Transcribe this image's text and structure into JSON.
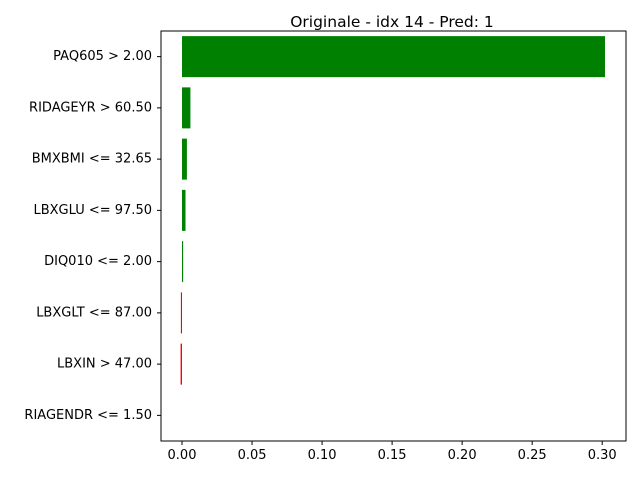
{
  "chart_data": {
    "type": "bar",
    "orientation": "horizontal",
    "title": "Originale - idx 14 - Pred: 1",
    "xlabel": "",
    "ylabel": "",
    "categories": [
      "PAQ605 > 2.00",
      "RIDAGEYR > 60.50",
      "BMXBMI <= 32.65",
      "LBXGLU <= 97.50",
      "DIQ010 <= 2.00",
      "LBXGLT <= 87.00",
      "LBXIN > 47.00",
      "RIAGENDR <= 1.50"
    ],
    "values": [
      0.302,
      0.006,
      0.0035,
      0.0025,
      0.0008,
      -0.0008,
      -0.001,
      0.0
    ],
    "xlim": [
      -0.015,
      0.317
    ],
    "xticks": [
      0.0,
      0.05,
      0.1,
      0.15,
      0.2,
      0.25,
      0.3
    ],
    "xtick_labels": [
      "0.00",
      "0.05",
      "0.10",
      "0.15",
      "0.20",
      "0.25",
      "0.30"
    ],
    "grid": false,
    "legend": "none",
    "colors": {
      "positive": "#008000",
      "negative": "#ff0000",
      "axis": "#000000"
    }
  }
}
